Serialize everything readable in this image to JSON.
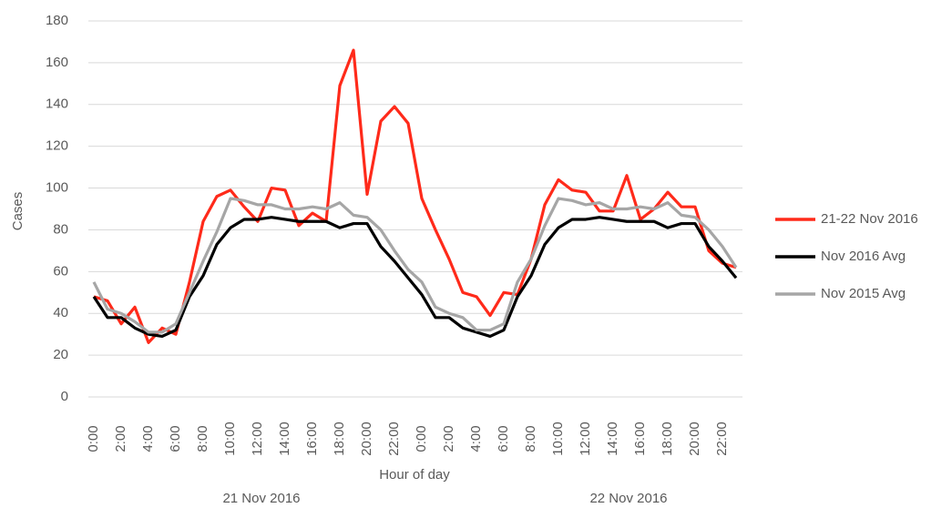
{
  "chart_data": {
    "type": "line",
    "xlabel": "Hour of day",
    "ylabel": "Cases",
    "group_labels": [
      "21 Nov 2016",
      "22 Nov 2016"
    ],
    "categories": [
      "0:00",
      null,
      "2:00",
      null,
      "4:00",
      null,
      "6:00",
      null,
      "8:00",
      null,
      "10:00",
      null,
      "12:00",
      null,
      "14:00",
      null,
      "16:00",
      null,
      "18:00",
      null,
      "20:00",
      null,
      "22:00",
      null,
      "0:00",
      null,
      "2:00",
      null,
      "4:00",
      null,
      "6:00",
      null,
      "8:00",
      null,
      "10:00",
      null,
      "12:00",
      null,
      "14:00",
      null,
      "16:00",
      null,
      "18:00",
      null,
      "20:00",
      null,
      "22:00",
      null
    ],
    "series": [
      {
        "name": "21-22 Nov 2016",
        "color": "#ff2a1a",
        "values": [
          48,
          46,
          35,
          43,
          26,
          33,
          30,
          55,
          84,
          96,
          99,
          91,
          84,
          100,
          99,
          82,
          88,
          84,
          149,
          166,
          97,
          132,
          139,
          131,
          95,
          80,
          66,
          50,
          48,
          39,
          50,
          49,
          66,
          92,
          104,
          99,
          98,
          89,
          89,
          106,
          85,
          90,
          98,
          91,
          91,
          70,
          64,
          62
        ]
      },
      {
        "name": "Nov 2016 Avg",
        "color": "#000000",
        "values": [
          48,
          38,
          38,
          33,
          30,
          29,
          32,
          48,
          58,
          73,
          81,
          85,
          85,
          86,
          85,
          84,
          84,
          84,
          81,
          83,
          83,
          72,
          65,
          57,
          49,
          38,
          38,
          33,
          31,
          29,
          32,
          48,
          58,
          73,
          81,
          85,
          85,
          86,
          85,
          84,
          84,
          84,
          81,
          83,
          83,
          72,
          65,
          57
        ]
      },
      {
        "name": "Nov 2015 Avg",
        "color": "#a6a6a6",
        "values": [
          55,
          42,
          40,
          36,
          31,
          31,
          35,
          50,
          65,
          79,
          95,
          94,
          92,
          92,
          90,
          90,
          91,
          90,
          93,
          87,
          86,
          80,
          70,
          61,
          55,
          43,
          40,
          38,
          32,
          32,
          35,
          55,
          66,
          82,
          95,
          94,
          92,
          93,
          90,
          90,
          91,
          90,
          93,
          87,
          86,
          80,
          72,
          62
        ]
      }
    ],
    "ylim": [
      0,
      180
    ],
    "yticks": [
      0,
      20,
      40,
      60,
      80,
      100,
      120,
      140,
      160,
      180
    ],
    "grid": true,
    "legend": "right"
  }
}
